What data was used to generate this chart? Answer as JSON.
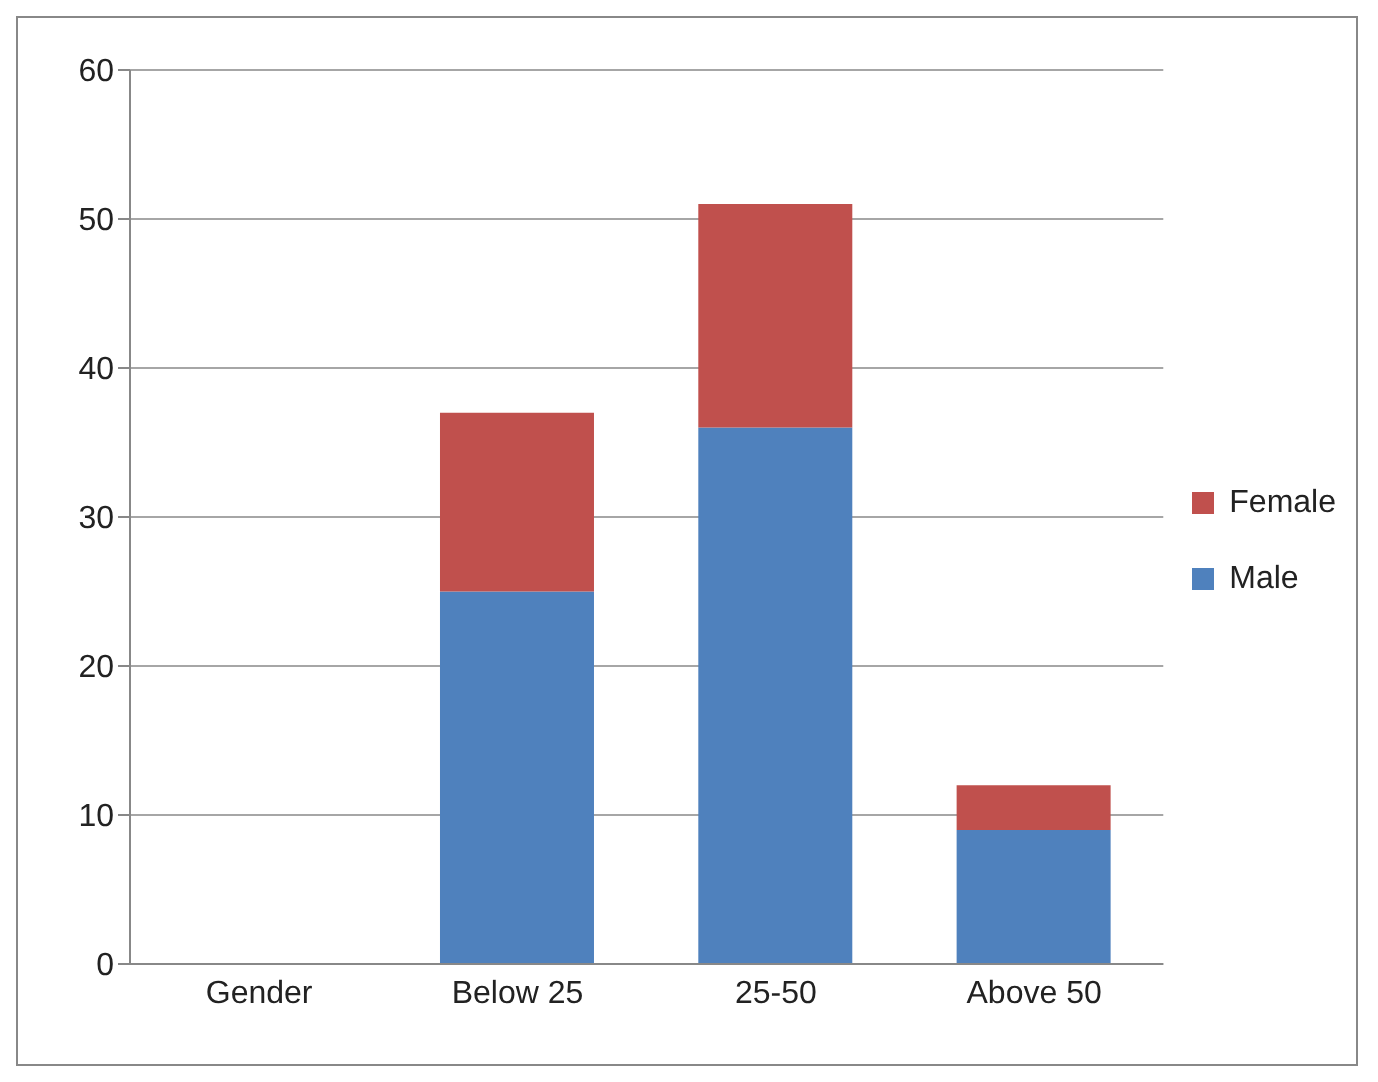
{
  "chart_data": {
    "type": "bar",
    "stacked": true,
    "categories": [
      "Gender",
      "Below 25",
      "25-50",
      "Above 50"
    ],
    "series": [
      {
        "name": "Male",
        "color": "#4f81bd",
        "values": [
          null,
          25,
          36,
          9
        ]
      },
      {
        "name": "Female",
        "color": "#c0504d",
        "values": [
          null,
          12,
          15,
          3
        ]
      }
    ],
    "ylim": [
      0,
      60
    ],
    "yticks": [
      0,
      10,
      20,
      30,
      40,
      50,
      60
    ],
    "grid": "y",
    "legend": "right"
  }
}
